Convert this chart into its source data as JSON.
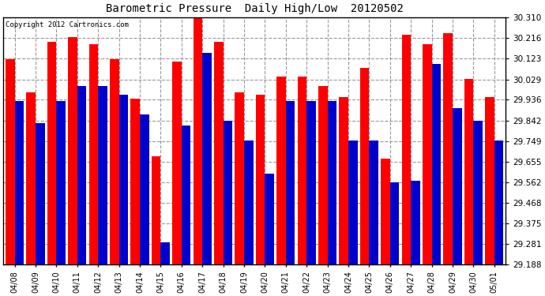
{
  "title": "Barometric Pressure  Daily High/Low  20120502",
  "copyright": "Copyright 2012 Cartronics.com",
  "dates": [
    "04/08",
    "04/09",
    "04/10",
    "04/11",
    "04/12",
    "04/13",
    "04/14",
    "04/15",
    "04/16",
    "04/17",
    "04/18",
    "04/19",
    "04/20",
    "04/21",
    "04/22",
    "04/23",
    "04/24",
    "04/25",
    "04/26",
    "04/27",
    "04/28",
    "04/29",
    "04/30",
    "05/01"
  ],
  "highs": [
    30.12,
    29.97,
    30.2,
    30.22,
    30.19,
    30.12,
    29.94,
    29.68,
    30.11,
    30.32,
    30.2,
    29.97,
    29.96,
    30.04,
    30.04,
    30.0,
    29.95,
    30.08,
    29.67,
    30.23,
    30.19,
    30.24,
    30.03,
    29.95
  ],
  "lows": [
    29.93,
    29.83,
    29.93,
    30.0,
    30.0,
    29.96,
    29.87,
    29.29,
    29.82,
    30.15,
    29.84,
    29.75,
    29.6,
    29.93,
    29.93,
    29.93,
    29.75,
    29.75,
    29.56,
    29.57,
    30.1,
    29.9,
    29.84,
    29.75
  ],
  "high_color": "#ff0000",
  "low_color": "#0000cc",
  "bg_color": "#ffffff",
  "plot_bg_color": "#ffffff",
  "grid_color": "#999999",
  "ymin": 29.188,
  "ymax": 30.31,
  "yticks": [
    29.188,
    29.281,
    29.375,
    29.468,
    29.562,
    29.655,
    29.749,
    29.842,
    29.936,
    30.029,
    30.123,
    30.216,
    30.31
  ]
}
